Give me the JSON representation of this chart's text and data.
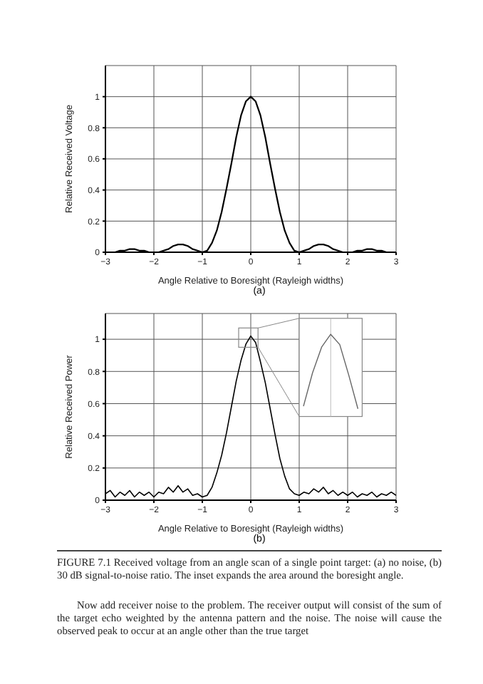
{
  "chart_data": [
    {
      "type": "line",
      "title": "(a)",
      "xlabel": "Angle Relative to Boresight (Rayleigh widths)",
      "ylabel": "Relative Received Voltage",
      "x": [
        -3,
        -2.9,
        -2.8,
        -2.7,
        -2.6,
        -2.5,
        -2.4,
        -2.3,
        -2.2,
        -2.1,
        -2,
        -1.9,
        -1.8,
        -1.7,
        -1.6,
        -1.5,
        -1.4,
        -1.3,
        -1.2,
        -1.1,
        -1,
        -0.9,
        -0.8,
        -0.7,
        -0.6,
        -0.5,
        -0.4,
        -0.3,
        -0.2,
        -0.1,
        0,
        0.1,
        0.2,
        0.3,
        0.4,
        0.5,
        0.6,
        0.7,
        0.8,
        0.9,
        1,
        1.1,
        1.2,
        1.3,
        1.4,
        1.5,
        1.6,
        1.7,
        1.8,
        1.9,
        2,
        2.1,
        2.2,
        2.3,
        2.4,
        2.5,
        2.6,
        2.7,
        2.8,
        2.9,
        3
      ],
      "series": [
        {
          "color": "#000000",
          "values": [
            0,
            0,
            0,
            0.01,
            0.01,
            0.02,
            0.02,
            0.01,
            0.01,
            0,
            0,
            0,
            0.01,
            0.02,
            0.04,
            0.05,
            0.05,
            0.04,
            0.02,
            0.01,
            0,
            0.01,
            0.06,
            0.14,
            0.26,
            0.41,
            0.57,
            0.74,
            0.88,
            0.97,
            1,
            0.97,
            0.88,
            0.74,
            0.57,
            0.41,
            0.26,
            0.14,
            0.06,
            0.01,
            0,
            0.01,
            0.02,
            0.04,
            0.05,
            0.05,
            0.04,
            0.02,
            0.01,
            0,
            0,
            0,
            0.01,
            0.01,
            0.02,
            0.02,
            0.01,
            0.01,
            0,
            0,
            0
          ]
        }
      ],
      "xlim": [
        -3,
        3
      ],
      "xticks": [
        -3,
        -2,
        -1,
        0,
        1,
        2,
        3
      ],
      "ylim": [
        0,
        1.2
      ],
      "yticks": [
        0,
        0.2,
        0.4,
        0.6,
        0.8,
        1
      ],
      "grid": true
    },
    {
      "type": "line",
      "title": "(b)",
      "xlabel": "Angle Relative to Boresight (Rayleigh widths)",
      "ylabel": "Relative Received Power",
      "x": [
        -3,
        -2.9,
        -2.8,
        -2.7,
        -2.6,
        -2.5,
        -2.4,
        -2.3,
        -2.2,
        -2.1,
        -2,
        -1.9,
        -1.8,
        -1.7,
        -1.6,
        -1.5,
        -1.4,
        -1.3,
        -1.2,
        -1.1,
        -1,
        -0.9,
        -0.8,
        -0.7,
        -0.6,
        -0.5,
        -0.4,
        -0.3,
        -0.2,
        -0.1,
        0,
        0.1,
        0.2,
        0.3,
        0.4,
        0.5,
        0.6,
        0.7,
        0.8,
        0.9,
        1,
        1.1,
        1.2,
        1.3,
        1.4,
        1.5,
        1.6,
        1.7,
        1.8,
        1.9,
        2,
        2.1,
        2.2,
        2.3,
        2.4,
        2.5,
        2.6,
        2.7,
        2.8,
        2.9,
        3
      ],
      "series": [
        {
          "color": "#000000",
          "values": [
            0.04,
            0.06,
            0.02,
            0.05,
            0.03,
            0.06,
            0.02,
            0.05,
            0.03,
            0.05,
            0.02,
            0.05,
            0.04,
            0.08,
            0.05,
            0.09,
            0.05,
            0.07,
            0.03,
            0.04,
            0.02,
            0.03,
            0.08,
            0.17,
            0.28,
            0.42,
            0.58,
            0.74,
            0.87,
            0.97,
            1.02,
            0.98,
            0.86,
            0.73,
            0.57,
            0.41,
            0.26,
            0.15,
            0.07,
            0.04,
            0.03,
            0.05,
            0.04,
            0.07,
            0.05,
            0.08,
            0.04,
            0.06,
            0.03,
            0.05,
            0.03,
            0.05,
            0.02,
            0.04,
            0.03,
            0.05,
            0.02,
            0.04,
            0.03,
            0.05,
            0.03
          ]
        }
      ],
      "xlim": [
        -3,
        3
      ],
      "xticks": [
        -3,
        -2,
        -1,
        0,
        1,
        2,
        3
      ],
      "ylim": [
        0,
        1.16
      ],
      "yticks": [
        0,
        0.2,
        0.4,
        0.6,
        0.8,
        1
      ],
      "grid": true,
      "annotations": [
        "FIGURE 7.1 Received voltage from an angle scan of a single point target: (a) no noise, (b) 30 dB signal-to-noise ratio. The inset expands the area around the boresight angle.",
        "Now add receiver noise to the problem. The receiver output will consist of the sum of the target echo weighted by the antenna pattern and the noise. The noise will cause the observed peak to occur at an angle other than the true target"
      ]
    }
  ]
}
